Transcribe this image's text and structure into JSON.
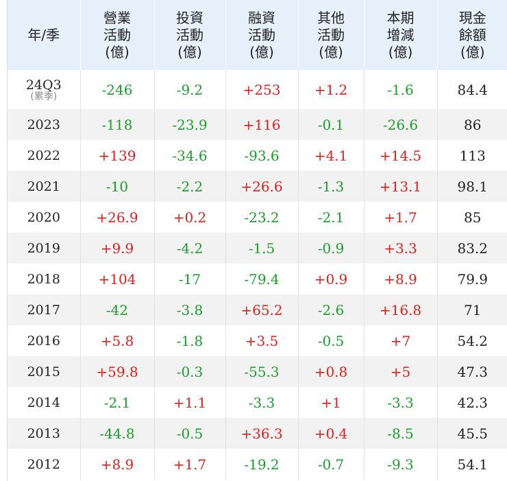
{
  "headers": [
    [
      "年/季"
    ],
    [
      "營業",
      "活動",
      "(億)"
    ],
    [
      "投資",
      "活動",
      "(億)"
    ],
    [
      "融資",
      "活動",
      "(億)"
    ],
    [
      "其他",
      "活動",
      "(億)"
    ],
    [
      "本期",
      "增減",
      "(億)"
    ],
    [
      "現金",
      "餘額",
      "(億)"
    ]
  ],
  "rows": [
    {
      "year": "24Q3",
      "sub": "(累季)",
      "op": "-246",
      "inv": "-9.2",
      "fin": "+253",
      "oth": "+1.2",
      "chg": "-1.6",
      "bal": "84.4"
    },
    {
      "year": "2023",
      "sub": "",
      "op": "-118",
      "inv": "-23.9",
      "fin": "+116",
      "oth": "-0.1",
      "chg": "-26.6",
      "bal": "86"
    },
    {
      "year": "2022",
      "sub": "",
      "op": "+139",
      "inv": "-34.6",
      "fin": "-93.6",
      "oth": "+4.1",
      "chg": "+14.5",
      "bal": "113"
    },
    {
      "year": "2021",
      "sub": "",
      "op": "-10",
      "inv": "-2.2",
      "fin": "+26.6",
      "oth": "-1.3",
      "chg": "+13.1",
      "bal": "98.1"
    },
    {
      "year": "2020",
      "sub": "",
      "op": "+26.9",
      "inv": "+0.2",
      "fin": "-23.2",
      "oth": "-2.1",
      "chg": "+1.7",
      "bal": "85"
    },
    {
      "year": "2019",
      "sub": "",
      "op": "+9.9",
      "inv": "-4.2",
      "fin": "-1.5",
      "oth": "-0.9",
      "chg": "+3.3",
      "bal": "83.2"
    },
    {
      "year": "2018",
      "sub": "",
      "op": "+104",
      "inv": "-17",
      "fin": "-79.4",
      "oth": "+0.9",
      "chg": "+8.9",
      "bal": "79.9"
    },
    {
      "year": "2017",
      "sub": "",
      "op": "-42",
      "inv": "-3.8",
      "fin": "+65.2",
      "oth": "-2.6",
      "chg": "+16.8",
      "bal": "71"
    },
    {
      "year": "2016",
      "sub": "",
      "op": "+5.8",
      "inv": "-1.8",
      "fin": "+3.5",
      "oth": "-0.5",
      "chg": "+7",
      "bal": "54.2"
    },
    {
      "year": "2015",
      "sub": "",
      "op": "+59.8",
      "inv": "-0.3",
      "fin": "-55.3",
      "oth": "+0.8",
      "chg": "+5",
      "bal": "47.3"
    },
    {
      "year": "2014",
      "sub": "",
      "op": "-2.1",
      "inv": "+1.1",
      "fin": "-3.3",
      "oth": "+1",
      "chg": "-3.3",
      "bal": "42.3"
    },
    {
      "year": "2013",
      "sub": "",
      "op": "-44.8",
      "inv": "-0.5",
      "fin": "+36.3",
      "oth": "+0.4",
      "chg": "-8.5",
      "bal": "45.5"
    },
    {
      "year": "2012",
      "sub": "",
      "op": "+8.9",
      "inv": "+1.7",
      "fin": "-19.2",
      "oth": "-0.7",
      "chg": "-9.3",
      "bal": "54.1"
    }
  ],
  "colors": {
    "positive": "#e0201b",
    "negative": "#1a9e2b",
    "header_bg": "#e6f0fb",
    "stripe_bg": "#f2f2f2"
  }
}
